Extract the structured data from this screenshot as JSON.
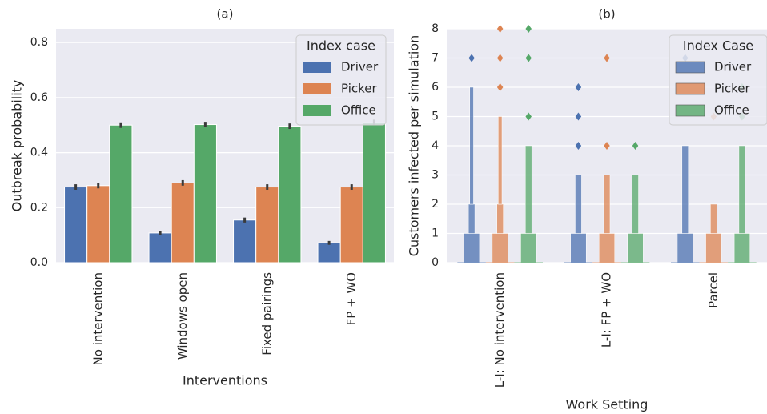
{
  "chart_data": [
    {
      "type": "bar",
      "title": "(a)",
      "xlabel": "Interventions",
      "ylabel": "Outbreak probability",
      "categories": [
        "No intervention",
        "Windows open",
        "Fixed pairings",
        "FP + WO"
      ],
      "series": [
        {
          "name": "Driver",
          "color": "#4c72b0",
          "values": [
            0.275,
            0.108,
            0.155,
            0.072
          ],
          "errors": [
            0.01,
            0.008,
            0.009,
            0.007
          ]
        },
        {
          "name": "Picker",
          "color": "#dd8452",
          "values": [
            0.28,
            0.29,
            0.275,
            0.275
          ],
          "errors": [
            0.01,
            0.01,
            0.01,
            0.01
          ]
        },
        {
          "name": "Office",
          "color": "#55a868",
          "values": [
            0.5,
            0.502,
            0.496,
            0.51
          ],
          "errors": [
            0.01,
            0.01,
            0.01,
            0.01
          ]
        }
      ],
      "ylim": [
        0,
        0.85
      ],
      "yticks": [
        {
          "value": 0,
          "label": "0.0"
        },
        0.2,
        0.4,
        0.6,
        0.8
      ],
      "grid": true,
      "legend_title": "Index case",
      "legend": "upper right"
    },
    {
      "type": "boxen",
      "title": "(b)",
      "xlabel": "Work Setting",
      "ylabel": "Customers infected per simulation",
      "categories": [
        "L-I: No intervention",
        "L-I: FP + WO",
        "Parcel"
      ],
      "series": [
        {
          "name": "Driver",
          "color": "#4c72b0",
          "boxes": [
            [
              [
                0,
                1
              ],
              [
                1,
                2
              ],
              [
                2,
                6
              ]
            ],
            [
              [
                0,
                1
              ],
              [
                1,
                3
              ]
            ],
            [
              [
                0,
                1
              ],
              [
                1,
                4
              ]
            ]
          ],
          "outliers": [
            [
              7
            ],
            [
              4,
              5,
              6
            ],
            [
              7
            ]
          ]
        },
        {
          "name": "Picker",
          "color": "#dd8452",
          "boxes": [
            [
              [
                0,
                1
              ],
              [
                1,
                2
              ],
              [
                2,
                5
              ]
            ],
            [
              [
                0,
                1
              ],
              [
                1,
                3
              ]
            ],
            [
              [
                0,
                1
              ],
              [
                1,
                2
              ]
            ]
          ],
          "outliers": [
            [
              6,
              7,
              8
            ],
            [
              4,
              7
            ],
            [
              5
            ]
          ]
        },
        {
          "name": "Office",
          "color": "#55a868",
          "boxes": [
            [
              [
                0,
                1
              ],
              [
                1,
                4
              ]
            ],
            [
              [
                0,
                1
              ],
              [
                1,
                3
              ]
            ],
            [
              [
                0,
                1
              ],
              [
                1,
                4
              ]
            ]
          ],
          "outliers": [
            [
              5,
              7,
              8
            ],
            [
              4
            ],
            [
              5,
              6
            ]
          ]
        }
      ],
      "ylim": [
        0,
        8
      ],
      "yticks": [
        0,
        1,
        2,
        3,
        4,
        5,
        6,
        7,
        8
      ],
      "grid": true,
      "legend_title": "Index Case",
      "legend": "upper right"
    }
  ]
}
